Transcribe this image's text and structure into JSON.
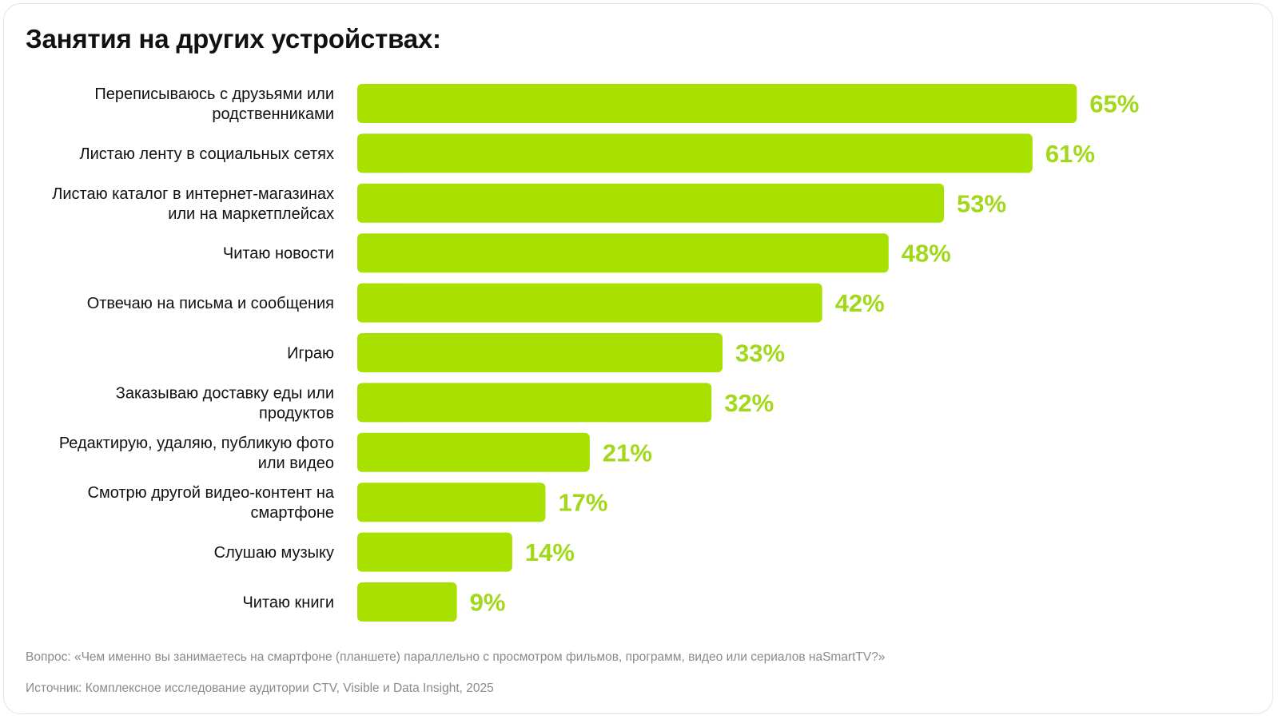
{
  "chart_data": {
    "type": "bar",
    "orientation": "horizontal",
    "title": "Занятия на других устройствах:",
    "categories": [
      [
        "Переписываюсь с друзьями или",
        "родственниками"
      ],
      [
        "Листаю ленту в социальных сетях"
      ],
      [
        "Листаю каталог в интернет-магазинах",
        "или на маркетплейсах"
      ],
      [
        "Читаю новости"
      ],
      [
        "Отвечаю на письма и сообщения"
      ],
      [
        "Играю"
      ],
      [
        "Заказываю доставку еды или",
        "продуктов"
      ],
      [
        "Редактирую, удаляю, публикую фото",
        "или видео"
      ],
      [
        "Смотрю другой видео-контент на",
        "смартфоне"
      ],
      [
        "Слушаю музыку"
      ],
      [
        "Читаю книги"
      ]
    ],
    "values": [
      65,
      61,
      53,
      48,
      42,
      33,
      32,
      21,
      17,
      14,
      9
    ],
    "value_labels": [
      "65%",
      "61%",
      "53%",
      "48%",
      "42%",
      "33%",
      "32%",
      "21%",
      "17%",
      "14%",
      "9%"
    ],
    "unit": "%",
    "bar_color": "#a8e000",
    "label_color": "#a2d81a",
    "grid": false,
    "legend": "none"
  },
  "notes": {
    "question": "Вопрос: «Чем именно вы занимаетесь на смартфоне (планшете) параллельно с просмотром фильмов, программ, видео или сериалов наSmartTV?»",
    "source": "Источник: Комплексное исследование аудитории CTV, Visible и Data Insight, 2025"
  }
}
